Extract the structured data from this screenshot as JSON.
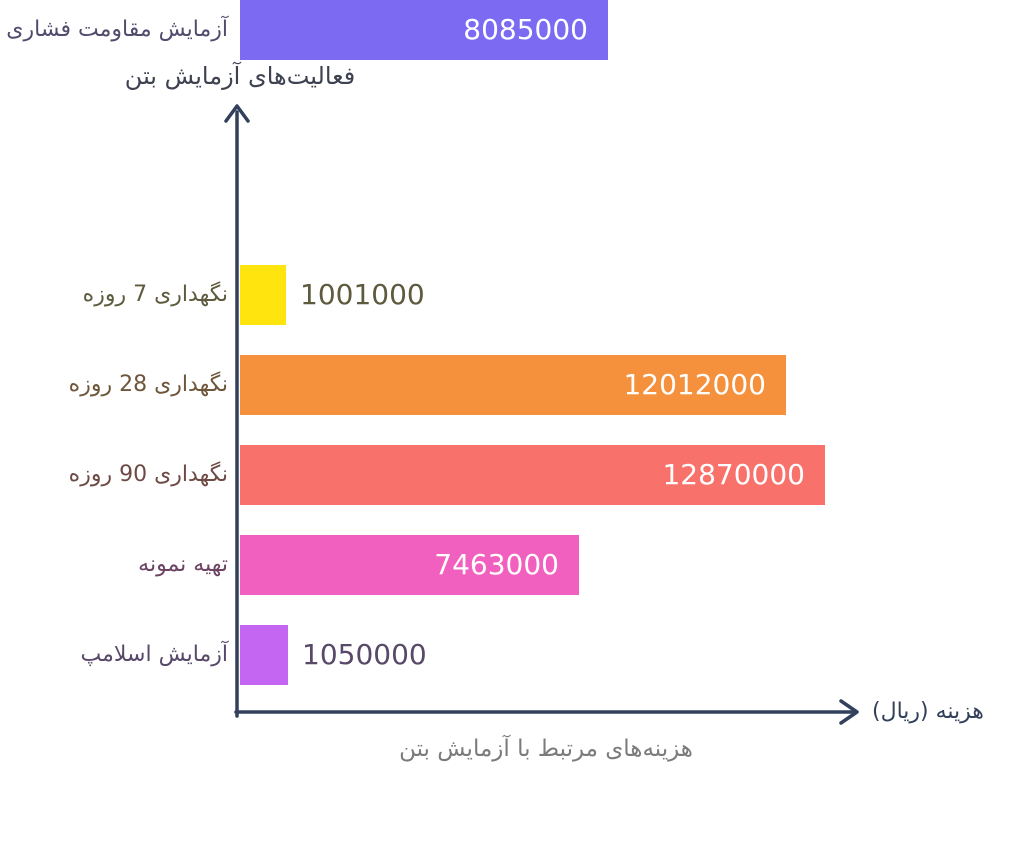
{
  "chart_data": {
    "type": "bar",
    "orientation": "horizontal",
    "title": "هزینه‌های مرتبط با آزمایش بتن",
    "xlabel": "هزینه (ریال)",
    "ylabel": "فعالیت‌های آزمایش بتن",
    "xlim": [
      0,
      12870000
    ],
    "grid": false,
    "legend": "none",
    "categories": [
      "نگهداری 7 روزه",
      "نگهداری 28 روزه",
      "نگهداری 90 روزه",
      "تهیه نمونه",
      "آزمایش اسلامپ",
      "آزمایش مقاومت فشاری"
    ],
    "values": [
      1001000,
      12012000,
      12870000,
      7463000,
      1050000,
      8085000
    ],
    "bars": [
      {
        "category": "نگهداری 7 روزه",
        "value": 1001000,
        "color": "#FFE40D",
        "text_color": "#5E5A3D"
      },
      {
        "category": "نگهداری 28 روزه",
        "value": 12012000,
        "color": "#F5913D",
        "text_color": "#6E563B"
      },
      {
        "category": "نگهداری 90 روزه",
        "value": 12870000,
        "color": "#F8716A",
        "text_color": "#6E4A45"
      },
      {
        "category": "تهیه نمونه",
        "value": 7463000,
        "color": "#F160BE",
        "text_color": "#6D4364"
      },
      {
        "category": "آزمایش اسلامپ",
        "value": 1050000,
        "color": "#C466F1",
        "text_color": "#584969"
      },
      {
        "category": "آزمایش مقاومت فشاری",
        "value": 8085000,
        "color": "#7C6BF2",
        "text_color": "#514C6E"
      }
    ],
    "value_label_inside_color": "#FFFFFF",
    "colors": {
      "axis": "#33405C",
      "axis_title": "#3D4150",
      "chart_title": "#7B7B7B"
    }
  }
}
